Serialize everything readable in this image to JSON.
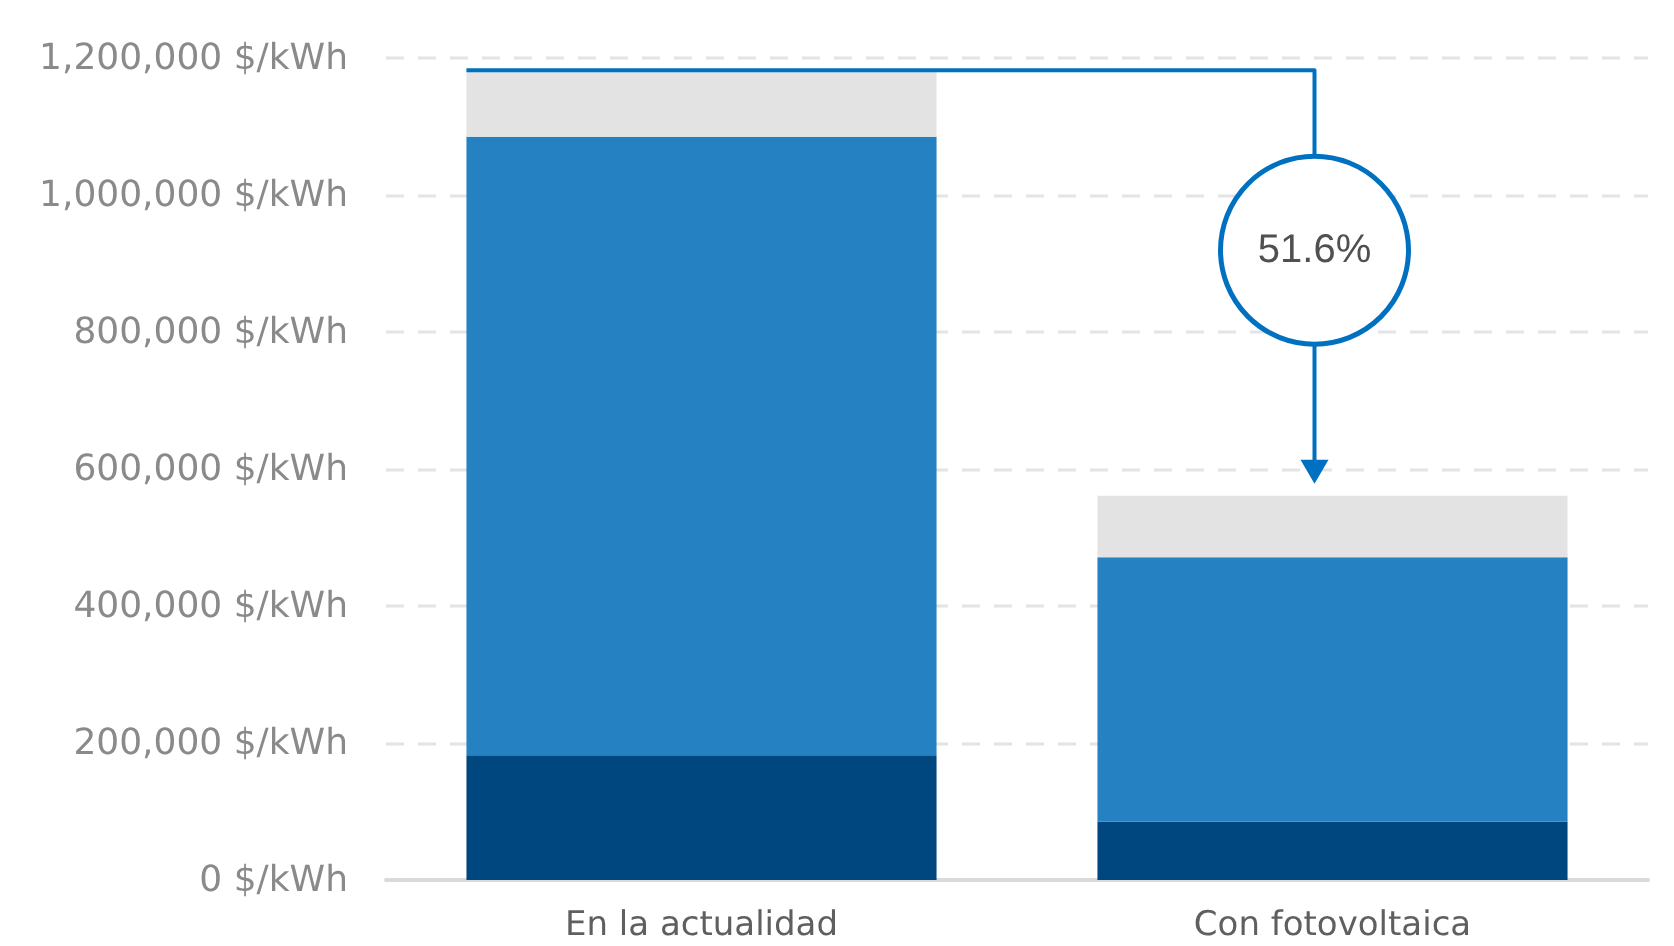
{
  "chart_data": {
    "type": "bar",
    "stacked": true,
    "categories": [
      "En la actualidad",
      "Con fotovoltaica"
    ],
    "series": [
      {
        "color": "#00477f",
        "values": [
          182000,
          85000
        ]
      },
      {
        "color": "#2581c1",
        "values": [
          903000,
          386000
        ]
      },
      {
        "color": "#e3e3e3",
        "values": [
          97000,
          90000
        ]
      }
    ],
    "ylim": [
      0,
      1200000
    ],
    "yticks": [
      {
        "value": 0,
        "label": "0 $/kWh"
      },
      {
        "value": 200000,
        "label": "200,000 $/kWh"
      },
      {
        "value": 400000,
        "label": "400,000 $/kWh"
      },
      {
        "value": 600000,
        "label": "600,000 $/kWh"
      },
      {
        "value": 800000,
        "label": "800,000 $/kWh"
      },
      {
        "value": 1000000,
        "label": "1,000,000 $/kWh"
      },
      {
        "value": 1200000,
        "label": "1,200,000 $/kWh"
      }
    ],
    "grid": "y",
    "annotations": [
      "51.6%"
    ]
  }
}
